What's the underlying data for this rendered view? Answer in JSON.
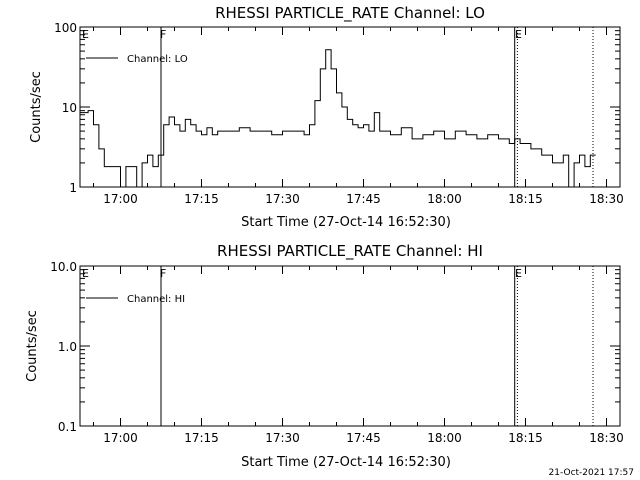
{
  "chart_data": [
    {
      "type": "line",
      "title": "RHESSI PARTICLE_RATE Channel: LO",
      "ylabel": "Counts/sec",
      "xlabel": "Start Time (27-Oct-14 16:52:30)",
      "yscale": "log",
      "ylim": [
        1,
        100
      ],
      "xlim": [
        "16:52:30",
        "18:32:30"
      ],
      "ytick_labels": [
        "1",
        "10",
        "100"
      ],
      "xtick_labels": [
        "17:00",
        "17:15",
        "17:30",
        "17:45",
        "18:00",
        "18:15",
        "18:30"
      ],
      "legend": "top-left",
      "series": [
        {
          "name": "Channel: LO",
          "color": "#000000",
          "x": [
            "16:52:30",
            "16:54",
            "16:55",
            "16:56",
            "16:57",
            "16:58",
            "16:59",
            "17:00",
            "17:01",
            "17:02",
            "17:03",
            "17:04",
            "17:05",
            "17:06",
            "17:07",
            "17:07:30",
            "17:08",
            "17:09",
            "17:10",
            "17:11",
            "17:12",
            "17:13",
            "17:14",
            "17:15",
            "17:16",
            "17:17",
            "17:18",
            "17:20",
            "17:22",
            "17:24",
            "17:26",
            "17:28",
            "17:30",
            "17:32",
            "17:34",
            "17:35",
            "17:36",
            "17:37",
            "17:38",
            "17:39",
            "17:40",
            "17:41",
            "17:42",
            "17:43",
            "17:44",
            "17:45",
            "17:46",
            "17:47",
            "17:48",
            "17:50",
            "17:52",
            "17:54",
            "17:56",
            "17:58",
            "18:00",
            "18:02",
            "18:04",
            "18:06",
            "18:08",
            "18:10",
            "18:12",
            "18:13",
            "18:14",
            "18:16",
            "18:18",
            "18:20",
            "18:22",
            "18:23",
            "18:24",
            "18:25",
            "18:26",
            "18:27",
            "18:28"
          ],
          "y": [
            8.5,
            9,
            6,
            3,
            1.8,
            1.8,
            1.8,
            1,
            1.8,
            1.8,
            1,
            2,
            2.5,
            1.8,
            2.5,
            2.5,
            6,
            7.5,
            6,
            5,
            7,
            6,
            5,
            4.5,
            5.5,
            4.5,
            5,
            5,
            5.5,
            5,
            5,
            4.5,
            5,
            5,
            4.5,
            6,
            12,
            30,
            52,
            30,
            15,
            10,
            7,
            6,
            5.5,
            6,
            5,
            8.5,
            5,
            4.5,
            5.5,
            4,
            4.5,
            5,
            4,
            5,
            4.5,
            4,
            4.5,
            4,
            3.5,
            4,
            3.5,
            3,
            2.5,
            2,
            2.5,
            1,
            2,
            2.5,
            1.8,
            2.5,
            2.5
          ]
        }
      ],
      "annotations": [
        "E",
        "F",
        "E"
      ]
    },
    {
      "type": "line",
      "title": "RHESSI PARTICLE_RATE Channel: HI",
      "ylabel": "Counts/sec",
      "xlabel": "Start Time (27-Oct-14 16:52:30)",
      "yscale": "log",
      "ylim": [
        0.1,
        10
      ],
      "xlim": [
        "16:52:30",
        "18:32:30"
      ],
      "ytick_labels": [
        "0.1",
        "1.0",
        "10.0"
      ],
      "xtick_labels": [
        "17:00",
        "17:15",
        "17:30",
        "17:45",
        "18:00",
        "18:15",
        "18:30"
      ],
      "legend": "top-left",
      "series": [
        {
          "name": "Channel: HI",
          "color": "#000000",
          "x": [],
          "y": []
        }
      ],
      "annotations": [
        "E",
        "F",
        "E"
      ]
    }
  ],
  "timestamp": "21-Oct-2021 17:57"
}
